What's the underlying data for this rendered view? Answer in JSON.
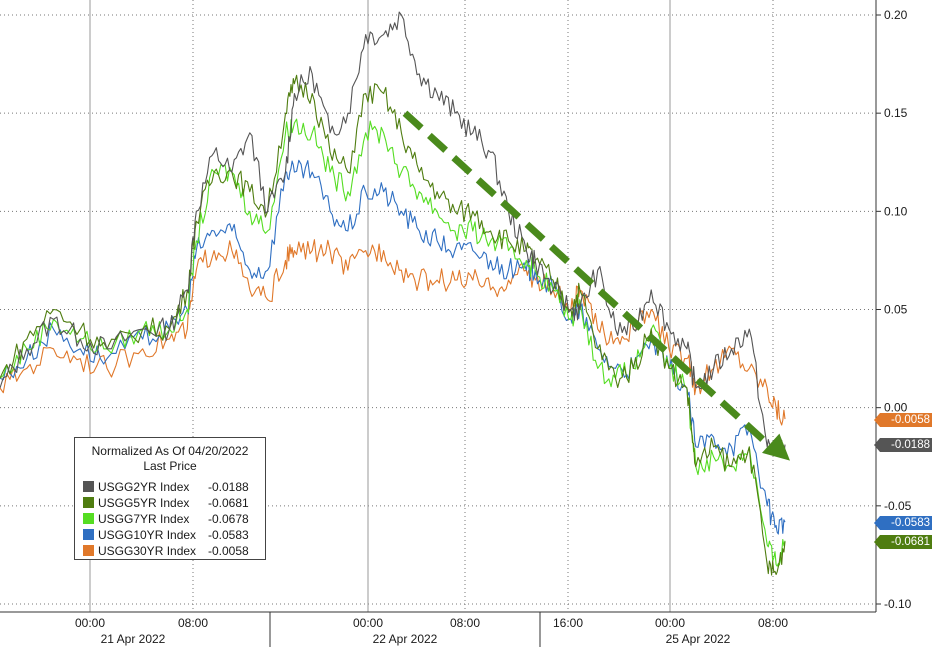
{
  "chart_data": {
    "type": "line",
    "title": "",
    "legend": {
      "title": "Normalized As Of 04/20/2022",
      "subtitle": "Last Price",
      "position": "bottom-left"
    },
    "y_axis": {
      "position": "right",
      "range": [
        -0.1,
        0.2
      ],
      "ticks": [
        "0.20",
        "0.15",
        "0.10",
        "0.05",
        "0.00",
        "-0.05",
        "-0.10"
      ]
    },
    "x_axis": {
      "time_ticks": [
        "00:00",
        "08:00",
        "00:00",
        "08:00",
        "16:00",
        "00:00",
        "08:00"
      ],
      "date_labels": [
        "21 Apr 2022",
        "22 Apr 2022",
        "25 Apr 2022"
      ]
    },
    "grid": true,
    "trend_arrow": {
      "color": "#4a8a1c",
      "from": {
        "time": "22 Apr 03:30",
        "y": 0.15
      },
      "to": {
        "time": "25 Apr 09:30",
        "y": -0.027
      }
    },
    "series": [
      {
        "name": "USGG2YR Index",
        "last": "-0.0188",
        "color": "#555555",
        "points": [
          [
            0,
            0.01
          ],
          [
            6,
            0.03
          ],
          [
            12,
            0.045
          ],
          [
            18,
            0.035
          ],
          [
            24,
            0.03
          ],
          [
            32,
            0.04
          ],
          [
            38,
            0.04
          ],
          [
            42,
            0.06
          ],
          [
            44,
            0.1
          ],
          [
            48,
            0.13
          ],
          [
            52,
            0.12
          ],
          [
            56,
            0.14
          ],
          [
            60,
            0.1
          ],
          [
            64,
            0.12
          ],
          [
            66,
            0.16
          ],
          [
            70,
            0.17
          ],
          [
            74,
            0.14
          ],
          [
            78,
            0.15
          ],
          [
            82,
            0.19
          ],
          [
            86,
            0.19
          ],
          [
            90,
            0.2
          ],
          [
            94,
            0.17
          ],
          [
            98,
            0.16
          ],
          [
            102,
            0.15
          ],
          [
            106,
            0.14
          ],
          [
            110,
            0.13
          ],
          [
            114,
            0.1
          ],
          [
            118,
            0.08
          ],
          [
            120,
            0.075
          ],
          [
            124,
            0.06
          ],
          [
            128,
            0.05
          ],
          [
            130,
            0.05
          ],
          [
            134,
            0.07
          ],
          [
            138,
            0.04
          ],
          [
            142,
            0.04
          ],
          [
            146,
            0.06
          ],
          [
            150,
            0.04
          ],
          [
            154,
            0.03
          ],
          [
            156,
            0.01
          ],
          [
            160,
            0.02
          ],
          [
            164,
            0.03
          ],
          [
            168,
            0.04
          ],
          [
            172,
            -0.02
          ],
          [
            174,
            -0.02
          ],
          [
            176,
            -0.0188
          ]
        ]
      },
      {
        "name": "USGG5YR Index",
        "last": "-0.0681",
        "color": "#4f7d10",
        "points": [
          [
            0,
            0.015
          ],
          [
            6,
            0.035
          ],
          [
            12,
            0.05
          ],
          [
            18,
            0.04
          ],
          [
            24,
            0.03
          ],
          [
            32,
            0.04
          ],
          [
            38,
            0.04
          ],
          [
            42,
            0.06
          ],
          [
            44,
            0.095
          ],
          [
            48,
            0.12
          ],
          [
            52,
            0.12
          ],
          [
            56,
            0.11
          ],
          [
            60,
            0.1
          ],
          [
            64,
            0.15
          ],
          [
            66,
            0.165
          ],
          [
            70,
            0.16
          ],
          [
            74,
            0.13
          ],
          [
            78,
            0.12
          ],
          [
            82,
            0.16
          ],
          [
            86,
            0.16
          ],
          [
            90,
            0.14
          ],
          [
            94,
            0.12
          ],
          [
            98,
            0.11
          ],
          [
            102,
            0.1
          ],
          [
            106,
            0.1
          ],
          [
            110,
            0.09
          ],
          [
            114,
            0.085
          ],
          [
            118,
            0.08
          ],
          [
            120,
            0.075
          ],
          [
            124,
            0.065
          ],
          [
            128,
            0.05
          ],
          [
            130,
            0.06
          ],
          [
            134,
            0.03
          ],
          [
            138,
            0.015
          ],
          [
            142,
            0.02
          ],
          [
            146,
            0.04
          ],
          [
            150,
            0.02
          ],
          [
            154,
            0.01
          ],
          [
            156,
            -0.03
          ],
          [
            160,
            -0.02
          ],
          [
            164,
            -0.03
          ],
          [
            168,
            -0.02
          ],
          [
            172,
            -0.08
          ],
          [
            174,
            -0.085
          ],
          [
            176,
            -0.0681
          ]
        ]
      },
      {
        "name": "USGG7YR Index",
        "last": "-0.0678",
        "color": "#55dd22",
        "points": [
          [
            0,
            0.015
          ],
          [
            6,
            0.03
          ],
          [
            12,
            0.045
          ],
          [
            18,
            0.035
          ],
          [
            24,
            0.03
          ],
          [
            32,
            0.04
          ],
          [
            38,
            0.04
          ],
          [
            42,
            0.05
          ],
          [
            44,
            0.085
          ],
          [
            48,
            0.12
          ],
          [
            52,
            0.12
          ],
          [
            56,
            0.1
          ],
          [
            60,
            0.09
          ],
          [
            64,
            0.14
          ],
          [
            66,
            0.145
          ],
          [
            70,
            0.14
          ],
          [
            74,
            0.12
          ],
          [
            78,
            0.11
          ],
          [
            82,
            0.14
          ],
          [
            86,
            0.14
          ],
          [
            90,
            0.12
          ],
          [
            94,
            0.11
          ],
          [
            98,
            0.1
          ],
          [
            102,
            0.09
          ],
          [
            106,
            0.09
          ],
          [
            110,
            0.085
          ],
          [
            114,
            0.08
          ],
          [
            118,
            0.075
          ],
          [
            120,
            0.07
          ],
          [
            124,
            0.06
          ],
          [
            128,
            0.045
          ],
          [
            130,
            0.055
          ],
          [
            134,
            0.02
          ],
          [
            138,
            0.015
          ],
          [
            142,
            0.02
          ],
          [
            146,
            0.04
          ],
          [
            150,
            0.02
          ],
          [
            154,
            0.01
          ],
          [
            156,
            -0.03
          ],
          [
            160,
            -0.025
          ],
          [
            164,
            -0.03
          ],
          [
            168,
            -0.02
          ],
          [
            172,
            -0.07
          ],
          [
            174,
            -0.08
          ],
          [
            176,
            -0.0678
          ]
        ]
      },
      {
        "name": "USGG10YR Index",
        "last": "-0.0583",
        "color": "#2f6fc2",
        "points": [
          [
            0,
            0.015
          ],
          [
            6,
            0.025
          ],
          [
            12,
            0.04
          ],
          [
            18,
            0.03
          ],
          [
            24,
            0.025
          ],
          [
            32,
            0.035
          ],
          [
            38,
            0.04
          ],
          [
            42,
            0.05
          ],
          [
            44,
            0.08
          ],
          [
            48,
            0.09
          ],
          [
            52,
            0.09
          ],
          [
            56,
            0.07
          ],
          [
            60,
            0.07
          ],
          [
            64,
            0.12
          ],
          [
            66,
            0.12
          ],
          [
            70,
            0.12
          ],
          [
            74,
            0.1
          ],
          [
            78,
            0.09
          ],
          [
            82,
            0.11
          ],
          [
            86,
            0.11
          ],
          [
            90,
            0.1
          ],
          [
            94,
            0.09
          ],
          [
            98,
            0.085
          ],
          [
            102,
            0.08
          ],
          [
            106,
            0.08
          ],
          [
            110,
            0.075
          ],
          [
            114,
            0.07
          ],
          [
            118,
            0.07
          ],
          [
            120,
            0.07
          ],
          [
            124,
            0.06
          ],
          [
            128,
            0.045
          ],
          [
            130,
            0.05
          ],
          [
            134,
            0.03
          ],
          [
            138,
            0.02
          ],
          [
            142,
            0.02
          ],
          [
            146,
            0.035
          ],
          [
            150,
            0.02
          ],
          [
            154,
            0.01
          ],
          [
            156,
            -0.02
          ],
          [
            160,
            -0.015
          ],
          [
            164,
            -0.02
          ],
          [
            168,
            -0.01
          ],
          [
            172,
            -0.05
          ],
          [
            174,
            -0.06
          ],
          [
            176,
            -0.0583
          ]
        ]
      },
      {
        "name": "USGG30YR Index",
        "last": "-0.0058",
        "color": "#e0782a",
        "points": [
          [
            0,
            0.01
          ],
          [
            6,
            0.02
          ],
          [
            12,
            0.03
          ],
          [
            18,
            0.025
          ],
          [
            24,
            0.02
          ],
          [
            32,
            0.03
          ],
          [
            38,
            0.035
          ],
          [
            42,
            0.04
          ],
          [
            44,
            0.07
          ],
          [
            48,
            0.08
          ],
          [
            52,
            0.08
          ],
          [
            56,
            0.06
          ],
          [
            60,
            0.055
          ],
          [
            64,
            0.075
          ],
          [
            66,
            0.08
          ],
          [
            70,
            0.08
          ],
          [
            74,
            0.08
          ],
          [
            78,
            0.07
          ],
          [
            82,
            0.08
          ],
          [
            86,
            0.08
          ],
          [
            90,
            0.07
          ],
          [
            94,
            0.065
          ],
          [
            98,
            0.065
          ],
          [
            102,
            0.065
          ],
          [
            106,
            0.065
          ],
          [
            110,
            0.06
          ],
          [
            114,
            0.065
          ],
          [
            118,
            0.07
          ],
          [
            120,
            0.065
          ],
          [
            124,
            0.06
          ],
          [
            128,
            0.05
          ],
          [
            130,
            0.06
          ],
          [
            134,
            0.04
          ],
          [
            138,
            0.035
          ],
          [
            142,
            0.04
          ],
          [
            146,
            0.05
          ],
          [
            150,
            0.03
          ],
          [
            154,
            0.025
          ],
          [
            156,
            0.01
          ],
          [
            160,
            0.02
          ],
          [
            164,
            0.03
          ],
          [
            168,
            0.02
          ],
          [
            172,
            0.01
          ],
          [
            174,
            0.0
          ],
          [
            176,
            -0.0058
          ]
        ]
      }
    ]
  }
}
